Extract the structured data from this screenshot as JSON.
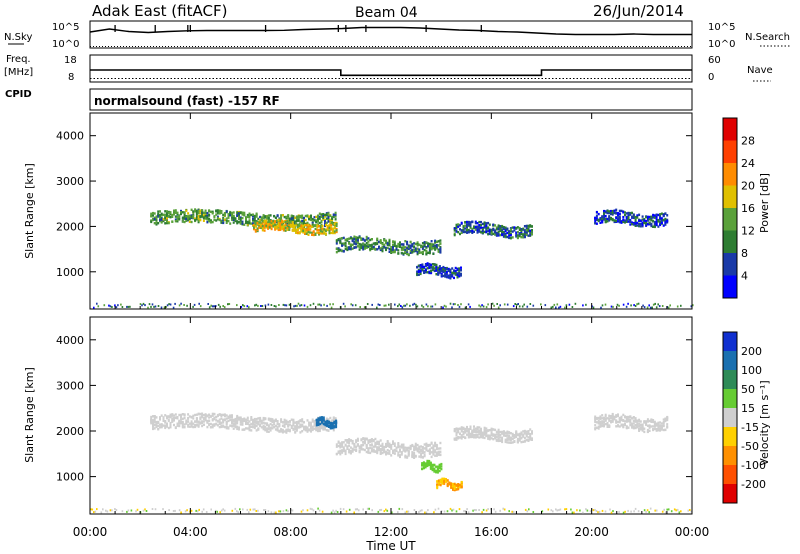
{
  "header": {
    "station": "Adak East (fitACF)",
    "beam": "Beam 04",
    "date": "26/Jun/2014"
  },
  "noise_panel": {
    "left_label": "N.Sky",
    "right_label": "N.Search",
    "scale_top": "10^5",
    "scale_bottom": "10^0",
    "nsky_level": [
      0.6,
      0.72,
      0.62,
      0.58,
      0.62,
      0.65,
      0.66,
      0.66,
      0.66,
      0.66,
      0.67,
      0.7,
      0.72,
      0.74,
      0.78,
      0.78,
      0.78,
      0.76,
      0.72,
      0.68,
      0.66,
      0.62,
      0.6,
      0.56,
      0.52,
      0.5,
      0.5,
      0.5,
      0.52,
      0.5,
      0.5,
      0.5
    ],
    "nsearch_level": [
      0.02,
      0.02,
      0.02,
      0.02,
      0.02,
      0.02,
      0.02,
      0.02,
      0.02,
      0.02,
      0.02,
      0.02,
      0.02,
      0.02,
      0.02,
      0.02,
      0.02,
      0.02,
      0.02,
      0.02,
      0.02,
      0.02,
      0.02,
      0.02,
      0.02,
      0.02,
      0.02,
      0.02,
      0.02,
      0.02,
      0.02,
      0.02
    ]
  },
  "freq_panel": {
    "left_title": "Freq.",
    "left_unit": "[MHz]",
    "left_top": "18",
    "left_bottom": "8",
    "right_label": "Nave",
    "right_top": "60",
    "right_bottom": "0",
    "cpid_label": "CPID",
    "cpid_text": "normalsound (fast) -157 RF",
    "freq_steps": [
      {
        "start": 0,
        "end": 10,
        "value": 12.4
      },
      {
        "start": 10,
        "end": 18,
        "value": 10.3
      },
      {
        "start": 18,
        "end": 24,
        "value": 12.4
      }
    ],
    "nave_value": 6
  },
  "axes": {
    "y_label": "Slant Range [km]",
    "y_ticks": [
      "1000",
      "2000",
      "3000",
      "4000"
    ],
    "x_label": "Time UT",
    "x_ticks": [
      "00:00",
      "04:00",
      "08:00",
      "12:00",
      "16:00",
      "20:00",
      "00:00"
    ]
  },
  "power_colorbar": {
    "label": "Power [dB]",
    "ticks": [
      "4",
      "8",
      "12",
      "16",
      "20",
      "24",
      "28"
    ],
    "colors": [
      "#0000ff",
      "#1a3aa8",
      "#2e7d32",
      "#5aa13a",
      "#e0c000",
      "#ff8c00",
      "#ff4000",
      "#e00000"
    ]
  },
  "velocity_colorbar": {
    "label": "Velocity [m s⁻¹]",
    "ticks": [
      "200",
      "100",
      "50",
      "15",
      "-15",
      "-50",
      "-100",
      "-200"
    ],
    "colors": [
      "#1030d0",
      "#1a70b0",
      "#2e8b57",
      "#66cc33",
      "#cfcfcf",
      "#ffd000",
      "#ff9000",
      "#ff5000",
      "#e00000"
    ]
  },
  "chart_data": {
    "type": "heatmap",
    "x_range_hours": [
      0,
      24
    ],
    "y_range_km": [
      180,
      4500
    ],
    "power_echo_regions": [
      {
        "t0": 2.4,
        "t1": 9.8,
        "r_center": 2200,
        "r_width": 280,
        "power_db": 12
      },
      {
        "t0": 6.5,
        "t1": 9.8,
        "r_center": 2000,
        "r_width": 220,
        "power_db": 18
      },
      {
        "t0": 9.8,
        "t1": 14.0,
        "r_center": 1600,
        "r_width": 300,
        "power_db": 10
      },
      {
        "t0": 13.0,
        "t1": 14.8,
        "r_center": 1050,
        "r_width": 220,
        "power_db": 6
      },
      {
        "t0": 14.5,
        "t1": 17.6,
        "r_center": 1950,
        "r_width": 250,
        "power_db": 8
      },
      {
        "t0": 20.1,
        "t1": 23.0,
        "r_center": 2200,
        "r_width": 280,
        "power_db": 6
      }
    ],
    "velocity_echo_regions": [
      {
        "t0": 2.4,
        "t1": 9.8,
        "r_center": 2200,
        "r_width": 300,
        "velocity_ms": 0
      },
      {
        "t0": 9.0,
        "t1": 9.8,
        "r_center": 2200,
        "r_width": 150,
        "velocity_ms": 150
      },
      {
        "t0": 9.8,
        "t1": 14.0,
        "r_center": 1650,
        "r_width": 320,
        "velocity_ms": 0
      },
      {
        "t0": 13.2,
        "t1": 14.0,
        "r_center": 1250,
        "r_width": 150,
        "velocity_ms": 40
      },
      {
        "t0": 13.8,
        "t1": 14.8,
        "r_center": 850,
        "r_width": 150,
        "velocity_ms": -50
      },
      {
        "t0": 14.5,
        "t1": 17.6,
        "r_center": 1950,
        "r_width": 250,
        "velocity_ms": 0
      },
      {
        "t0": 20.1,
        "t1": 23.0,
        "r_center": 2200,
        "r_width": 280,
        "velocity_ms": 0
      }
    ]
  }
}
